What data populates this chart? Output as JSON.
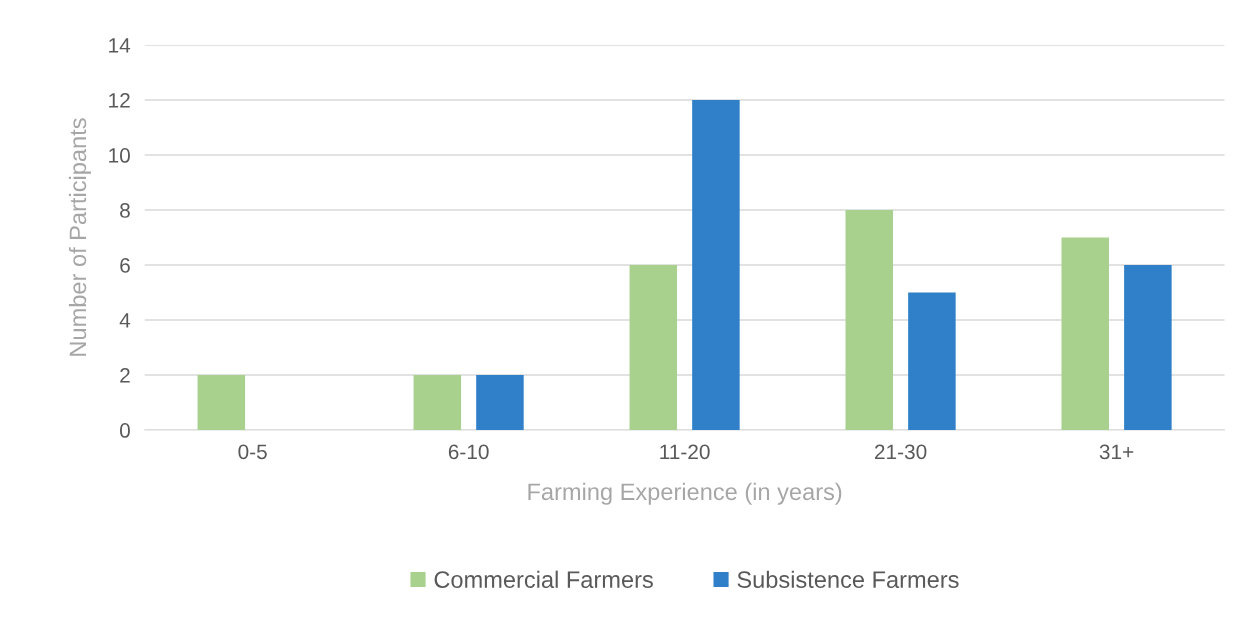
{
  "chart_data": {
    "type": "bar",
    "xlabel": "Farming Experience (in years)",
    "ylabel": "Number of Participants",
    "categories": [
      "0-5",
      "6-10",
      "11-20",
      "21-30",
      "31+"
    ],
    "series": [
      {
        "name": "Commercial Farmers",
        "color": "#a9d18e",
        "values": [
          2,
          2,
          6,
          8,
          7
        ]
      },
      {
        "name": "Subsistence Farmers",
        "color": "#2f80c8",
        "values": [
          0,
          2,
          12,
          5,
          6
        ]
      }
    ],
    "ylim": [
      0,
      14
    ],
    "yticks": [
      0,
      2,
      4,
      6,
      8,
      10,
      12,
      14
    ],
    "grid": "y",
    "legend": "bottom"
  }
}
